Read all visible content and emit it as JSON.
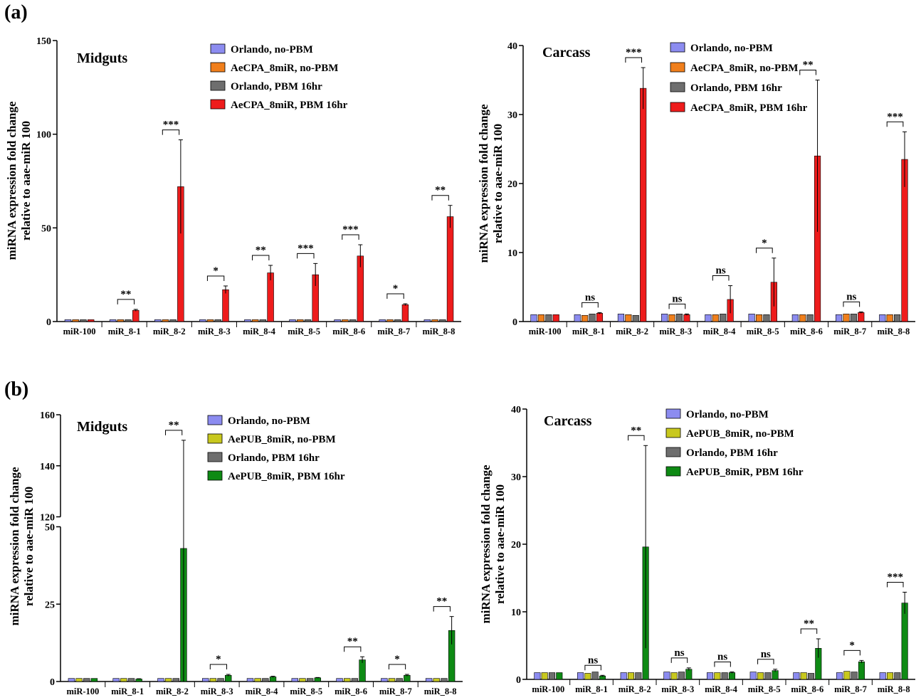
{
  "panels": [
    {
      "label": "(a)"
    },
    {
      "label": "(b)"
    }
  ],
  "chart_data": [
    {
      "type": "bar",
      "title": "Midguts",
      "ylabel_line1": "miRNA expression  fold change",
      "ylabel_line2": "relative to aae-miR 100",
      "categories": [
        "miR-100",
        "miR_8-1",
        "miR_8-2",
        "miR_8-3",
        "miR_8-4",
        "miR_8-5",
        "miR_8-6",
        "miR_8-7",
        "miR_8-8"
      ],
      "ylim": [
        0,
        150
      ],
      "yticks": [
        "0",
        "50",
        "100",
        "150"
      ],
      "legend": "top-right",
      "series": [
        {
          "name": "Orlando, no-PBM",
          "color": "#8c8cf0",
          "values": [
            1,
            1,
            1,
            1,
            1,
            1,
            1,
            1,
            1
          ]
        },
        {
          "name": "AeCPA_8miR, no-PBM",
          "color": "#f07f1c",
          "values": [
            1,
            1,
            1,
            1,
            1,
            1,
            1,
            1,
            1
          ]
        },
        {
          "name": "Orlando, PBM 16hr",
          "color": "#6e6e6e",
          "values": [
            1,
            1,
            1,
            1,
            1,
            1,
            1,
            1,
            1
          ]
        },
        {
          "name": "AeCPA_8miR, PBM 16hr",
          "color": "#ee1c1c",
          "values": [
            1,
            6,
            72,
            17,
            26,
            25,
            35,
            9,
            56
          ],
          "errors": [
            0,
            0.5,
            25,
            2,
            4,
            6,
            6,
            0.5,
            6
          ]
        }
      ],
      "significance": [
        "",
        "**",
        "***",
        "*",
        "**",
        "***",
        "***",
        "*",
        "**"
      ]
    },
    {
      "type": "bar",
      "title": "Carcass",
      "ylabel_line1": "miRNA expression  fold change",
      "ylabel_line2": "relative to aae-miR 100",
      "categories": [
        "miR-100",
        "miR_8-1",
        "miR_8-2",
        "miR_8-3",
        "miR_8-4",
        "miR_8-5",
        "miR_8-6",
        "miR_8-7",
        "miR_8-8"
      ],
      "ylim": [
        0,
        40
      ],
      "yticks": [
        "0",
        "10",
        "20",
        "30",
        "40"
      ],
      "legend": "top-right",
      "series": [
        {
          "name": "Orlando, no-PBM",
          "color": "#8c8cf0",
          "values": [
            1,
            1,
            1.1,
            1.1,
            1,
            1.1,
            1,
            1,
            1
          ]
        },
        {
          "name": "AeCPA_8miR, no-PBM",
          "color": "#f07f1c",
          "values": [
            1,
            0.9,
            1,
            1,
            1,
            1,
            1,
            1.1,
            1
          ]
        },
        {
          "name": "Orlando, PBM 16hr",
          "color": "#6e6e6e",
          "values": [
            1,
            1.1,
            0.9,
            1.1,
            1.1,
            1,
            1,
            1.1,
            1
          ]
        },
        {
          "name": "AeCPA_8miR, PBM 16hr",
          "color": "#ee1c1c",
          "values": [
            1,
            1.2,
            33.8,
            1,
            3.2,
            5.7,
            24,
            1.3,
            23.5
          ],
          "errors": [
            0,
            0.1,
            3,
            0.1,
            2,
            3.5,
            11,
            0.1,
            4
          ]
        }
      ],
      "significance": [
        "",
        "ns",
        "***",
        "ns",
        "ns",
        "*",
        "**",
        "ns",
        "***"
      ]
    },
    {
      "type": "bar",
      "title": "Midguts",
      "ylabel_line1": "miRNA expression  fold change",
      "ylabel_line2": "relative to aae-miR 100",
      "categories": [
        "miR-100",
        "miR_8-1",
        "miR_8-2",
        "miR_8-3",
        "miR_8-4",
        "miR_8-5",
        "miR_8-6",
        "miR_8-7",
        "miR_8-8"
      ],
      "ylim": [
        0,
        160
      ],
      "axis_break": [
        50,
        120
      ],
      "yticks": [
        "0",
        "25",
        "50",
        "120",
        "140",
        "160"
      ],
      "legend": "top-right",
      "series": [
        {
          "name": "Orlando, no-PBM",
          "color": "#8c8cf0",
          "values": [
            1,
            1,
            1,
            1,
            1,
            1,
            1,
            1,
            1
          ]
        },
        {
          "name": "AePUB_8miR, no-PBM",
          "color": "#c8c81e",
          "values": [
            1,
            1,
            1,
            1,
            1,
            1,
            1,
            1,
            1
          ]
        },
        {
          "name": "Orlando, PBM 16hr",
          "color": "#6e6e6e",
          "values": [
            1,
            1,
            1,
            1,
            1,
            1,
            1,
            1,
            1
          ]
        },
        {
          "name": "AePUB_8miR, PBM 16hr",
          "color": "#0e8a14",
          "values": [
            1,
            0.8,
            43,
            2,
            1.5,
            1.2,
            7,
            2,
            16.5
          ],
          "errors": [
            0,
            0.1,
            107,
            0.3,
            0.2,
            0.1,
            1,
            0.3,
            4.5
          ]
        }
      ],
      "significance": [
        "",
        "",
        "**",
        "*",
        "",
        "",
        "**",
        "*",
        "**"
      ]
    },
    {
      "type": "bar",
      "title": "Carcass",
      "ylabel_line1": "miRNA expression  fold change",
      "ylabel_line2": "relative to aae-miR 100",
      "categories": [
        "miR-100",
        "miR_8-1",
        "miR_8-2",
        "miR_8-3",
        "miR_8-4",
        "miR_8-5",
        "miR_8-6",
        "miR_8-7",
        "miR_8-8"
      ],
      "ylim": [
        0,
        40
      ],
      "yticks": [
        "0",
        "10",
        "20",
        "30",
        "40"
      ],
      "legend": "top-right",
      "series": [
        {
          "name": "Orlando, no-PBM",
          "color": "#8c8cf0",
          "values": [
            1,
            1,
            1,
            1.1,
            1,
            1.1,
            1,
            1,
            1
          ]
        },
        {
          "name": "AePUB_8miR, no-PBM",
          "color": "#c8c81e",
          "values": [
            1,
            0.9,
            1,
            1,
            1,
            1,
            1,
            1.2,
            1
          ]
        },
        {
          "name": "Orlando, PBM 16hr",
          "color": "#6e6e6e",
          "values": [
            1,
            1.1,
            1,
            1.1,
            1,
            1,
            0.9,
            1.1,
            1
          ]
        },
        {
          "name": "AePUB_8miR, PBM 16hr",
          "color": "#0e8a14",
          "values": [
            1,
            0.5,
            19.6,
            1.5,
            1,
            1.3,
            4.6,
            2.6,
            11.3
          ],
          "errors": [
            0,
            0.1,
            15,
            0.2,
            0.1,
            0.2,
            1.4,
            0.2,
            1.6
          ]
        }
      ],
      "significance": [
        "",
        "ns",
        "**",
        "ns",
        "ns",
        "ns",
        "**",
        "*",
        "***"
      ]
    }
  ]
}
